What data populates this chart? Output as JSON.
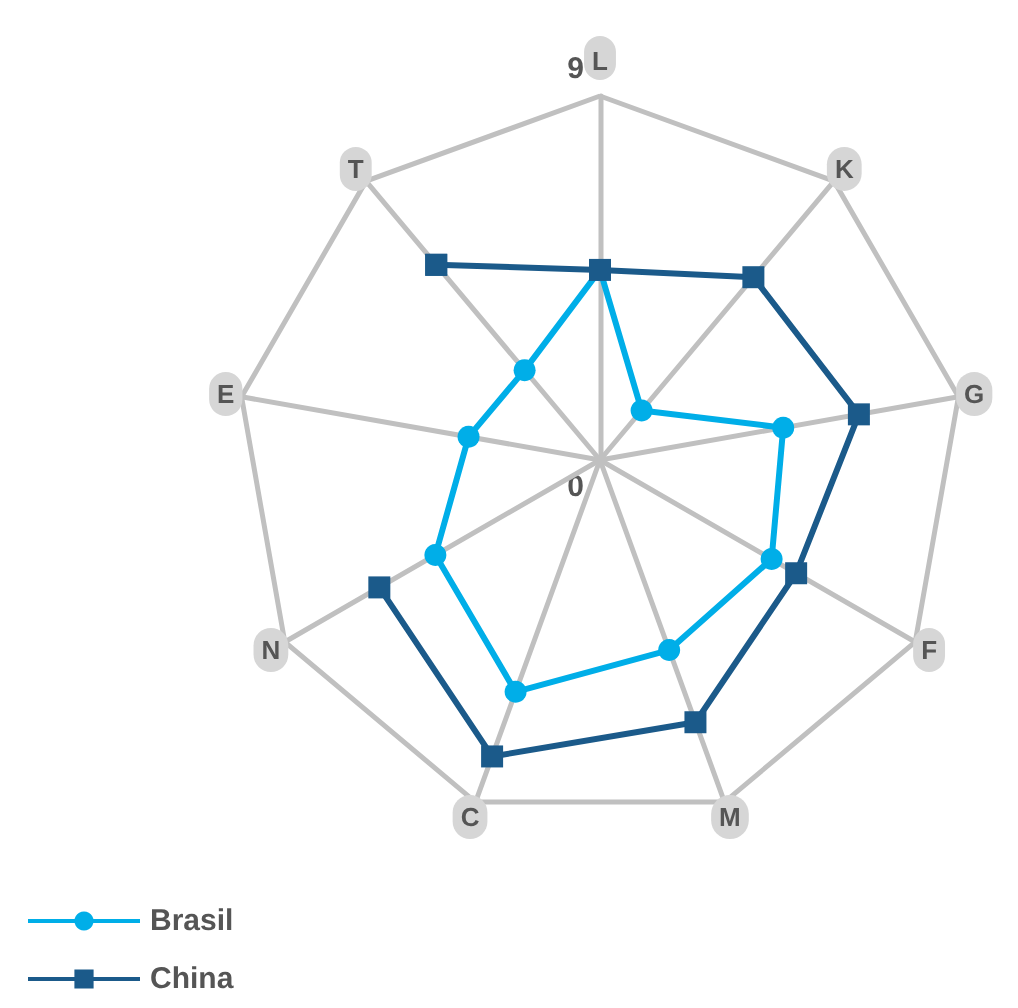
{
  "chart_data": {
    "type": "radar",
    "categories": [
      "L",
      "K",
      "G",
      "F",
      "M",
      "C",
      "N",
      "E",
      "T"
    ],
    "ylim": [
      0,
      9
    ],
    "yticks": [
      0,
      9
    ],
    "legend": "bottom left",
    "grid": true,
    "series": [
      {
        "name": "Brasil",
        "color": "#00aee8",
        "marker": "circle",
        "values": [
          4.7,
          1.6,
          4.6,
          4.9,
          5.0,
          6.1,
          4.7,
          3.3,
          2.9
        ]
      },
      {
        "name": "China",
        "color": "#1b5a8a",
        "marker": "square",
        "values": [
          4.7,
          5.9,
          6.5,
          5.6,
          6.9,
          7.8,
          6.3,
          null,
          6.3
        ]
      }
    ]
  }
}
